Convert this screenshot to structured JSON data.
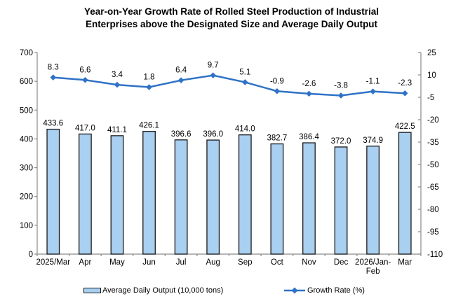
{
  "title": {
    "line1": "Year-on-Year Growth Rate of Rolled Steel Production of Industrial",
    "line2": "Enterprises above the Designated Size and Average Daily Output"
  },
  "colors": {
    "bar_fill": "#A9CFF1",
    "bar_stroke": "#1a1a1a",
    "line": "#2F72C6",
    "axis": "#8a8a8a",
    "label_text": "#000000"
  },
  "legend": {
    "bar_label": "Average Daily Output (10,000 tons)",
    "line_label": "Growth Rate (%)"
  },
  "chart_data": {
    "type": "combo",
    "subtypes": [
      "bar",
      "line"
    ],
    "categories": [
      "2025/Mar",
      "Apr",
      "May",
      "Jun",
      "Jul",
      "Aug",
      "Sep",
      "Oct",
      "Nov",
      "Dec",
      "2026/Jan-\nFeb",
      "Mar"
    ],
    "series": [
      {
        "name": "Average Daily Output (10,000 tons)",
        "type": "bar",
        "axis": "left",
        "values": [
          433.6,
          417.0,
          411.1,
          426.1,
          396.6,
          396.0,
          414.0,
          382.7,
          386.4,
          372.0,
          374.9,
          422.5
        ]
      },
      {
        "name": "Growth Rate (%)",
        "type": "line",
        "axis": "right",
        "values": [
          8.3,
          6.6,
          3.4,
          1.8,
          6.4,
          9.7,
          5.1,
          -0.9,
          -2.6,
          -3.8,
          -1.1,
          -2.3
        ]
      }
    ],
    "left_axis": {
      "min": 0,
      "max": 700,
      "step": 100
    },
    "right_axis": {
      "min": -110,
      "max": 25,
      "step": 15
    },
    "grid": false,
    "legend_position": "bottom",
    "data_labels": true
  }
}
